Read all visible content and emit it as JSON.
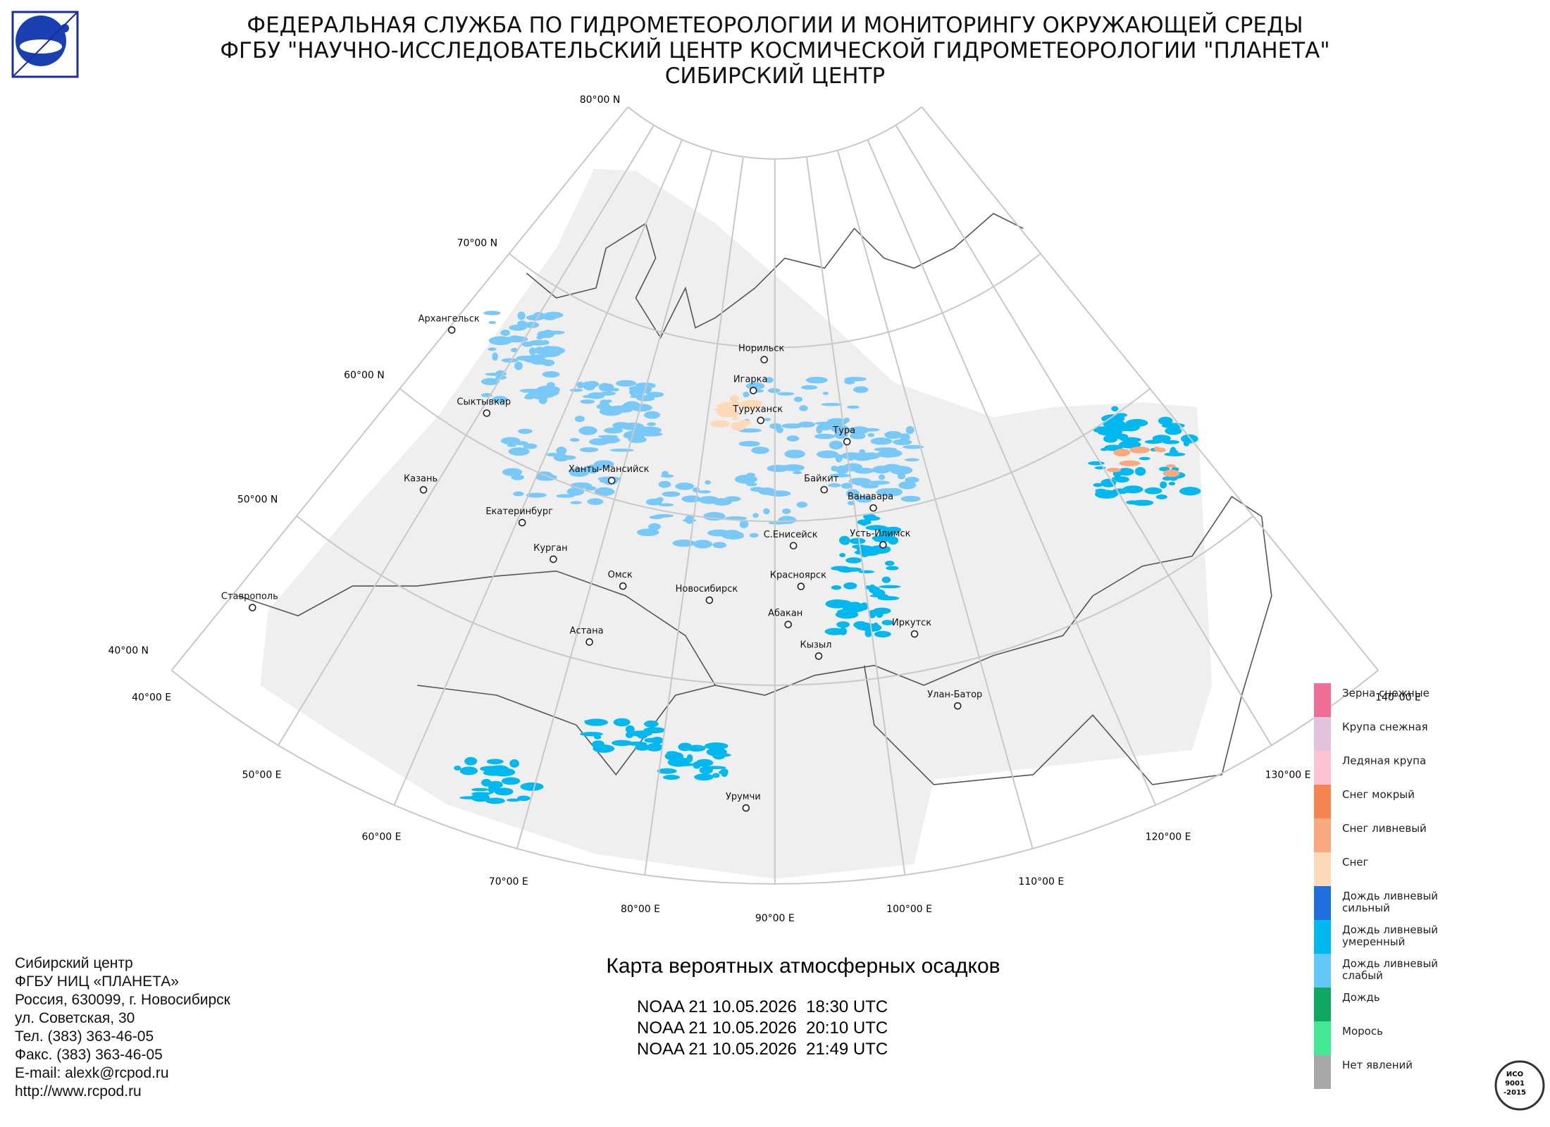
{
  "header": {
    "lines": [
      "ФЕДЕРАЛЬНАЯ СЛУЖБА ПО ГИДРОМЕТЕОРОЛОГИИ И МОНИТОРИНГУ ОКРУЖАЮЩЕЙ СРЕДЫ",
      "ФГБУ \"НАУЧНО-ИССЛЕДОВАТЕЛЬСКИЙ ЦЕНТР КОСМИЧЕСКОЙ ГИДРОМЕТЕОРОЛОГИИ \"ПЛАНЕТА\"",
      "СИБИРСКИЙ ЦЕНТР"
    ]
  },
  "map": {
    "latitude_labels": [
      "80°00 N",
      "70°00 N",
      "60°00 N",
      "50°00 N",
      "40°00 N"
    ],
    "longitude_labels": [
      "40°00 E",
      "50°00 E",
      "60°00 E",
      "70°00 E",
      "80°00 E",
      "90°00 E",
      "100°00 E",
      "110°00 E",
      "120°00 E",
      "130°00 E",
      "140°00 E"
    ],
    "cities": [
      "Архангельск",
      "Сыктывкар",
      "Казань",
      "Екатеринбург",
      "Курган",
      "Ставрополь",
      "Ханты-Мансийск",
      "Омск",
      "Астана",
      "Новосибирск",
      "Норильск",
      "Игарка",
      "Туруханск",
      "Тура",
      "Байкит",
      "Ванавара",
      "С.Енисейск",
      "Усть-Илимск",
      "Красноярск",
      "Абакан",
      "Иркутск",
      "Кызыл",
      "Улан-Батор",
      "Урумчи"
    ]
  },
  "legend": [
    {
      "label": "Зерна снежные",
      "color": "#f06e96"
    },
    {
      "label": "Крупа снежная",
      "color": "#e2c2dc"
    },
    {
      "label": "Ледяная крупа",
      "color": "#ffc2d2"
    },
    {
      "label": "Снег мокрый",
      "color": "#f58450"
    },
    {
      "label": "Снег ливневый",
      "color": "#f9a880"
    },
    {
      "label": "Снег",
      "color": "#fcdab8"
    },
    {
      "label": "Дождь ливневый сильный",
      "color": "#1f6fe0"
    },
    {
      "label": "Дождь ливневый умеренный",
      "color": "#00b8f0"
    },
    {
      "label": "Дождь ливневый слабый",
      "color": "#62c8f8"
    },
    {
      "label": "Дождь",
      "color": "#10a860"
    },
    {
      "label": "Морось",
      "color": "#44e892"
    },
    {
      "label": "Нет явлений",
      "color": "#a8a8a8"
    }
  ],
  "footer": {
    "lines": [
      "Сибирский центр",
      "ФГБУ НИЦ «ПЛАНЕТА»",
      "Россия, 630099, г. Новосибирск",
      "ул. Советская, 30",
      "Тел. (383) 363-46-05",
      "Факс. (383) 363-46-05",
      "E-mail: alexk@rcpod.ru",
      "http://www.rcpod.ru"
    ]
  },
  "product": {
    "title": "Карта вероятных атмосферных осадков",
    "passes": [
      "NOAA 21 10.05.2026  18:30 UTC",
      "NOAA 21 10.05.2026  20:10 UTC",
      "NOAA 21 10.05.2026  21:49 UTC"
    ]
  },
  "iso_badge": [
    "ИСО",
    "9001",
    "-2015"
  ]
}
